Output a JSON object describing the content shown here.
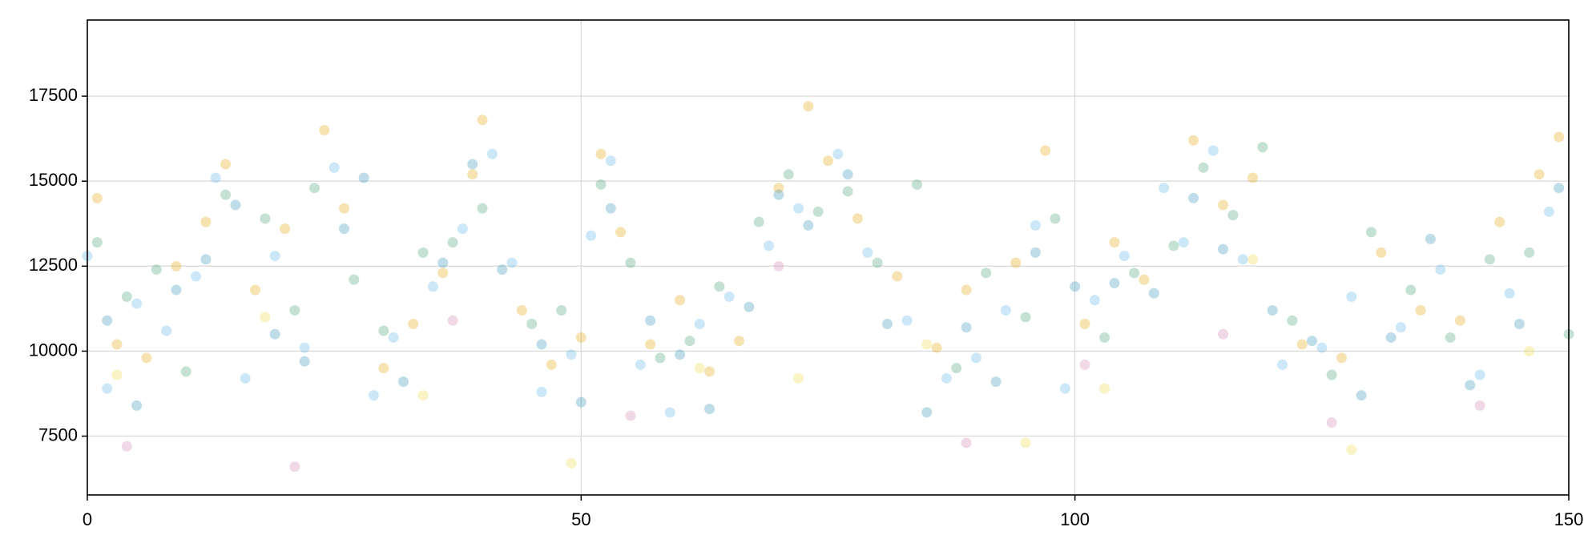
{
  "chart_data": {
    "type": "scatter",
    "xlim": [
      0,
      150
    ],
    "ylim": [
      5770,
      19740
    ],
    "xticks": [
      0,
      50,
      100,
      150
    ],
    "yticks": [
      7500,
      10000,
      12500,
      15000,
      17500
    ],
    "grid": true,
    "series": [
      {
        "color": "#e69f00",
        "x": [
          1,
          3,
          6,
          9,
          12,
          14,
          17,
          20,
          24,
          26,
          30,
          33,
          36,
          39,
          40,
          44,
          47,
          50,
          52,
          54,
          57,
          60,
          63,
          66,
          70,
          73,
          75,
          78,
          82,
          86,
          89,
          94,
          97,
          101,
          104,
          107,
          112,
          115,
          118,
          123,
          127,
          131,
          135,
          139,
          143,
          147,
          149
        ],
        "values": [
          14500,
          10200,
          9800,
          12500,
          13800,
          15500,
          11800,
          13600,
          16500,
          14200,
          9500,
          10800,
          12300,
          15200,
          16800,
          11200,
          9600,
          10400,
          15800,
          13500,
          10200,
          11500,
          9400,
          10300,
          14800,
          17200,
          15600,
          13900,
          12200,
          10100,
          11800,
          12600,
          15900,
          10800,
          13200,
          12100,
          16200,
          14300,
          15100,
          10200,
          9800,
          12900,
          11200,
          10900,
          13800,
          15200,
          16300
        ]
      },
      {
        "color": "#56b4e9",
        "x": [
          0,
          2,
          5,
          8,
          11,
          13,
          16,
          19,
          22,
          25,
          29,
          31,
          35,
          38,
          41,
          43,
          46,
          49,
          51,
          53,
          56,
          59,
          62,
          65,
          69,
          72,
          76,
          79,
          83,
          87,
          90,
          93,
          96,
          99,
          102,
          105,
          109,
          111,
          114,
          117,
          121,
          125,
          128,
          133,
          137,
          141,
          144,
          148
        ],
        "values": [
          12800,
          8900,
          11400,
          10600,
          12200,
          15100,
          9200,
          12800,
          10100,
          15400,
          8700,
          10400,
          11900,
          13600,
          15800,
          12600,
          8800,
          9900,
          13400,
          15600,
          9600,
          8200,
          10800,
          11600,
          13100,
          14200,
          15800,
          12900,
          10900,
          9200,
          9800,
          11200,
          13700,
          8900,
          11500,
          12800,
          14800,
          13200,
          15900,
          12700,
          9600,
          10100,
          11600,
          10700,
          12400,
          9300,
          11700,
          14100
        ]
      },
      {
        "color": "#3a9a6e",
        "x": [
          1,
          4,
          7,
          10,
          14,
          18,
          21,
          23,
          27,
          30,
          34,
          37,
          40,
          45,
          48,
          52,
          55,
          58,
          61,
          64,
          68,
          71,
          74,
          77,
          80,
          84,
          88,
          91,
          95,
          98,
          103,
          106,
          110,
          113,
          116,
          119,
          122,
          126,
          130,
          134,
          138,
          142,
          146,
          150
        ],
        "values": [
          13200,
          11600,
          12400,
          9400,
          14600,
          13900,
          11200,
          14800,
          12100,
          10600,
          12900,
          13200,
          14200,
          10800,
          11200,
          14900,
          12600,
          9800,
          10300,
          11900,
          13800,
          15200,
          14100,
          14700,
          12600,
          14900,
          9500,
          12300,
          11000,
          13900,
          10400,
          12300,
          13100,
          15400,
          14000,
          16000,
          10900,
          9300,
          13500,
          11800,
          10400,
          12700,
          12900,
          10500
        ]
      },
      {
        "color": "#2a8fb5",
        "x": [
          2,
          5,
          9,
          12,
          15,
          19,
          22,
          26,
          28,
          32,
          36,
          39,
          42,
          46,
          50,
          53,
          57,
          60,
          63,
          67,
          70,
          73,
          77,
          81,
          85,
          89,
          92,
          96,
          100,
          104,
          108,
          112,
          115,
          120,
          124,
          129,
          132,
          136,
          140,
          145,
          149
        ],
        "values": [
          10900,
          8400,
          11800,
          12700,
          14300,
          10500,
          9700,
          13600,
          15100,
          9100,
          12600,
          15500,
          12400,
          10200,
          8500,
          14200,
          10900,
          9900,
          8300,
          11300,
          14600,
          13700,
          15200,
          10800,
          8200,
          10700,
          9100,
          12900,
          11900,
          12000,
          11700,
          14500,
          13000,
          11200,
          10300,
          8700,
          10400,
          13300,
          9000,
          10800,
          14800
        ]
      },
      {
        "color": "#f0d840",
        "x": [
          3,
          18,
          34,
          49,
          62,
          72,
          85,
          95,
          103,
          118,
          128,
          146
        ],
        "values": [
          9300,
          11000,
          8700,
          6700,
          9500,
          9200,
          10200,
          7300,
          8900,
          12700,
          7100,
          10000
        ]
      },
      {
        "color": "#d27fb0",
        "x": [
          4,
          21,
          37,
          55,
          70,
          89,
          101,
          115,
          126,
          141
        ],
        "values": [
          7200,
          6600,
          10900,
          8100,
          12500,
          7300,
          9600,
          10500,
          7900,
          8400
        ]
      }
    ]
  }
}
